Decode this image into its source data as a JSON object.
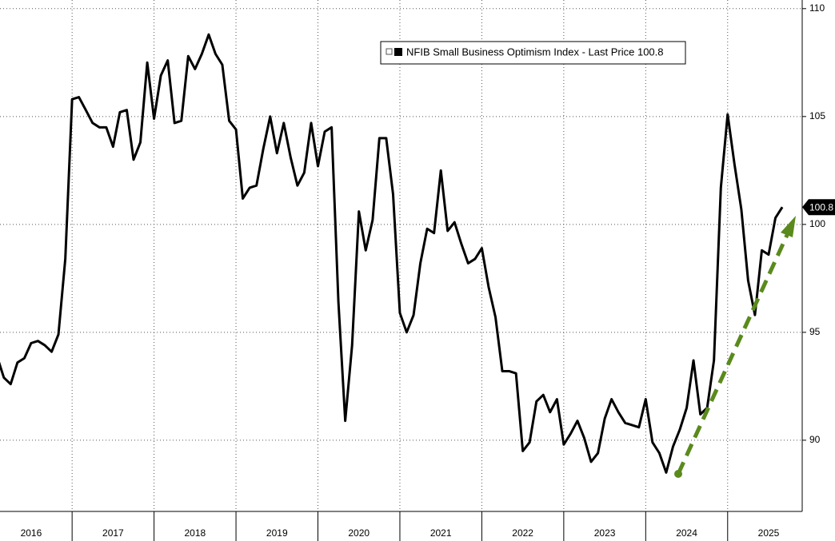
{
  "chart_data": {
    "type": "line",
    "series": [
      {
        "name": "NFIB Small Business Optimism Index - Last Price 100.8",
        "color": "#000000",
        "x": [
          2016.083,
          2016.167,
          2016.25,
          2016.333,
          2016.417,
          2016.5,
          2016.583,
          2016.667,
          2016.75,
          2016.833,
          2016.917,
          2017.0,
          2017.083,
          2017.167,
          2017.25,
          2017.333,
          2017.417,
          2017.5,
          2017.583,
          2017.667,
          2017.75,
          2017.833,
          2017.917,
          2018.0,
          2018.083,
          2018.167,
          2018.25,
          2018.333,
          2018.417,
          2018.5,
          2018.583,
          2018.667,
          2018.75,
          2018.833,
          2018.917,
          2019.0,
          2019.083,
          2019.167,
          2019.25,
          2019.333,
          2019.417,
          2019.5,
          2019.583,
          2019.667,
          2019.75,
          2019.833,
          2019.917,
          2020.0,
          2020.083,
          2020.167,
          2020.25,
          2020.333,
          2020.417,
          2020.5,
          2020.583,
          2020.667,
          2020.75,
          2020.833,
          2020.917,
          2021.0,
          2021.083,
          2021.167,
          2021.25,
          2021.333,
          2021.417,
          2021.5,
          2021.583,
          2021.667,
          2021.75,
          2021.833,
          2021.917,
          2022.0,
          2022.083,
          2022.167,
          2022.25,
          2022.333,
          2022.417,
          2022.5,
          2022.583,
          2022.667,
          2022.75,
          2022.833,
          2022.917,
          2023.0,
          2023.083,
          2023.167,
          2023.25,
          2023.333,
          2023.417,
          2023.5,
          2023.583,
          2023.667,
          2023.75,
          2023.833,
          2023.917,
          2024.0,
          2024.083,
          2024.167,
          2024.25,
          2024.333,
          2024.417,
          2024.5,
          2024.583,
          2024.667,
          2024.75,
          2024.833,
          2024.917,
          2025.0,
          2025.083,
          2025.167,
          2025.25,
          2025.333,
          2025.417,
          2025.5,
          2025.583,
          2025.667
        ],
        "values": [
          93.9,
          92.9,
          92.6,
          93.6,
          93.8,
          94.5,
          94.6,
          94.4,
          94.1,
          94.9,
          98.4,
          105.8,
          105.9,
          105.3,
          104.7,
          104.5,
          104.5,
          103.6,
          105.2,
          105.3,
          103.0,
          103.8,
          107.5,
          104.9,
          106.9,
          107.6,
          104.7,
          104.8,
          107.8,
          107.2,
          107.9,
          108.8,
          107.9,
          107.4,
          104.8,
          104.4,
          101.2,
          101.7,
          101.8,
          103.5,
          105.0,
          103.3,
          104.7,
          103.1,
          101.8,
          102.4,
          104.7,
          102.7,
          104.3,
          104.5,
          96.4,
          90.9,
          94.4,
          100.6,
          98.8,
          100.2,
          104.0,
          104.0,
          101.4,
          95.9,
          95.0,
          95.8,
          98.2,
          99.8,
          99.6,
          102.5,
          99.7,
          100.1,
          99.1,
          98.2,
          98.4,
          98.9,
          97.1,
          95.7,
          93.2,
          93.2,
          93.1,
          89.5,
          89.9,
          91.8,
          92.1,
          91.3,
          91.9,
          89.8,
          90.3,
          90.9,
          90.1,
          89.0,
          89.4,
          91.0,
          91.9,
          91.3,
          90.8,
          90.7,
          90.6,
          91.9,
          89.9,
          89.4,
          88.5,
          89.7,
          90.5,
          91.5,
          93.7,
          91.2,
          91.5,
          93.7,
          101.7,
          105.1,
          102.8,
          100.7,
          97.4,
          95.8,
          98.8,
          98.6,
          100.3,
          100.8
        ],
        "last_label": "100.8"
      }
    ],
    "xlim": [
      2016.12,
      2025.91
    ],
    "xticks": [
      2016,
      2017,
      2018,
      2019,
      2020,
      2021,
      2022,
      2023,
      2024,
      2025
    ],
    "ylim": [
      86.7,
      110.4
    ],
    "yticks": [
      90,
      95,
      100,
      105,
      110
    ],
    "grid": true
  }
}
